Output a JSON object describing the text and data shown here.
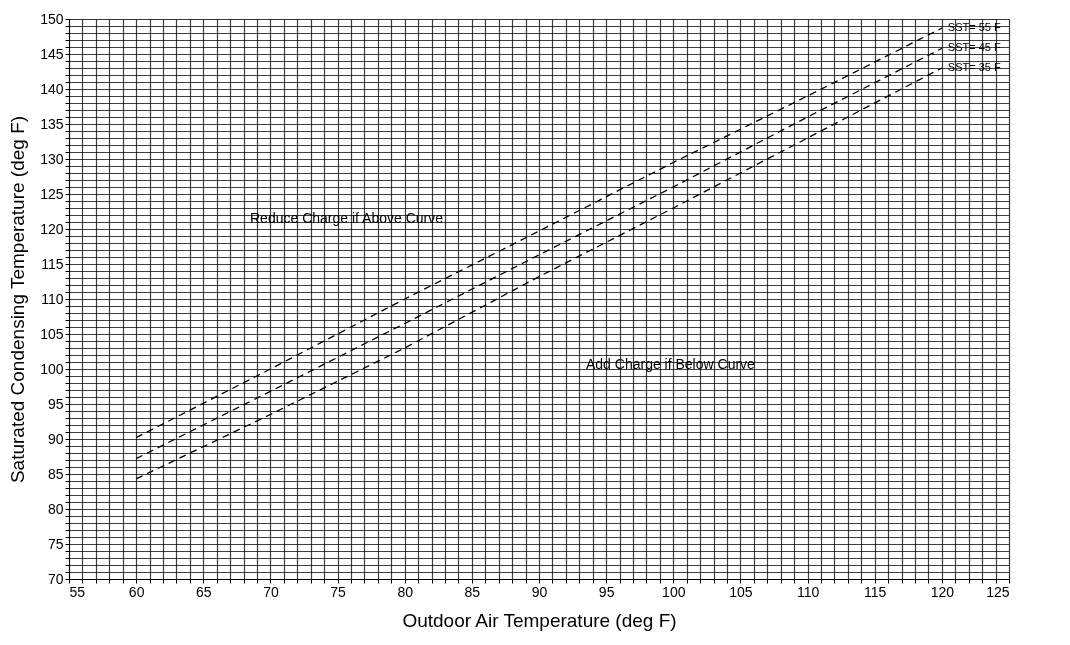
{
  "chart_data": {
    "type": "line",
    "xlabel": "Outdoor Air Temperature (deg F)",
    "ylabel": "Saturated Condensing Temperature (deg F)",
    "x": [
      60,
      70,
      80,
      90,
      100,
      110,
      120
    ],
    "series": [
      {
        "name": "SST= 55 F",
        "color": "#000000",
        "values": [
          90.2,
          100,
          110,
          119.7,
          129.5,
          139,
          148.7
        ]
      },
      {
        "name": "SST= 45 F",
        "color": "#000000",
        "values": [
          87.2,
          96.8,
          106.5,
          116.3,
          126,
          136,
          145.8
        ]
      },
      {
        "name": "SST= 35 F",
        "color": "#000000",
        "values": [
          84.3,
          93.5,
          103,
          113.2,
          123,
          133,
          143
        ]
      }
    ],
    "xlim": [
      55,
      125
    ],
    "xticks": [
      55,
      60,
      65,
      70,
      75,
      80,
      85,
      90,
      95,
      100,
      105,
      110,
      115,
      120,
      125
    ],
    "ylim": [
      70,
      150
    ],
    "yticks": [
      70,
      75,
      80,
      85,
      90,
      95,
      100,
      105,
      110,
      115,
      120,
      125,
      130,
      135,
      140,
      145,
      150
    ],
    "grid": true,
    "line_style": "dashed",
    "marker": "none",
    "annotations": [
      "Reduce Charge if Above Curve",
      "Add Charge if Below Curve"
    ]
  }
}
